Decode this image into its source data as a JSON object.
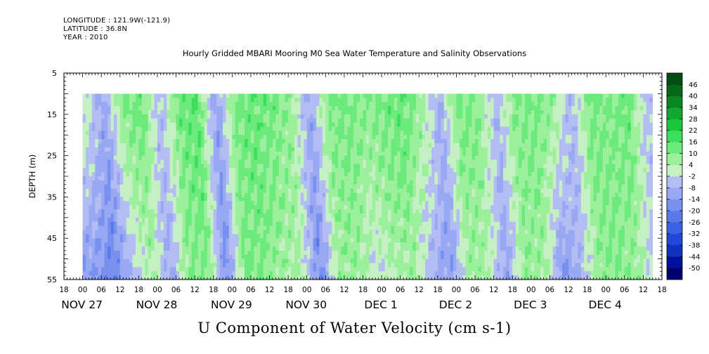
{
  "header": {
    "longitude": "LONGITUDE : 121.9W(-121.9)",
    "latitude": "LATITUDE : 36.8N",
    "year": "YEAR : 2010"
  },
  "chart_data": {
    "type": "heatmap",
    "title": "Hourly Gridded MBARI Mooring M0 Sea Water Temperature and Salinity Observations",
    "bottom_title": "U Component of Water Velocity (cm s-1)",
    "ylabel": "DEPTH (m)",
    "ylim": [
      5,
      55
    ],
    "y_inverted": true,
    "y_ticks": [
      5,
      15,
      25,
      35,
      45,
      55
    ],
    "data_depth_range": [
      10,
      55
    ],
    "x_range_hours": [
      -6,
      186
    ],
    "x_start": "NOV 27 2010 00:00",
    "x_tick_labels": [
      "18",
      "00",
      "06",
      "12",
      "18",
      "00",
      "06",
      "12",
      "18",
      "00",
      "06",
      "12",
      "18",
      "00",
      "06",
      "12",
      "18",
      "00",
      "06",
      "12",
      "18",
      "00",
      "06",
      "12",
      "18",
      "00",
      "06",
      "12",
      "18",
      "00",
      "06",
      "12",
      "18"
    ],
    "x_date_labels": [
      {
        "label": "NOV 27",
        "hour": 0
      },
      {
        "label": "NOV 28",
        "hour": 24
      },
      {
        "label": "NOV 29",
        "hour": 48
      },
      {
        "label": "NOV 30",
        "hour": 72
      },
      {
        "label": "DEC  1",
        "hour": 96
      },
      {
        "label": "DEC  2",
        "hour": 120
      },
      {
        "label": "DEC  3",
        "hour": 144
      },
      {
        "label": "DEC  4",
        "hour": 168
      }
    ],
    "colorbar": {
      "levels": [
        -50,
        -44,
        -38,
        -32,
        -26,
        -20,
        -14,
        -8,
        -2,
        4,
        10,
        16,
        22,
        28,
        34,
        40,
        46
      ],
      "labels": [
        "46",
        "40",
        "34",
        "28",
        "22",
        "16",
        "10",
        "4",
        "-2",
        "-8",
        "-14",
        "-20",
        "-26",
        "-32",
        "-38",
        "-44",
        "-50"
      ],
      "colors_low_to_high": [
        "#000070",
        "#00109a",
        "#1030c0",
        "#2048d8",
        "#3c60e4",
        "#5a78ea",
        "#7890ee",
        "#98a8f2",
        "#b4bcf4",
        "#c4f0c4",
        "#9cf09c",
        "#6cea7c",
        "#3cde5c",
        "#18c83c",
        "#10a830",
        "#088824",
        "#046818",
        "#024e12"
      ]
    },
    "u_velocity_profile_by_hour": {
      "hours": [
        0,
        6,
        12,
        18,
        24,
        30,
        36,
        42,
        48,
        54,
        60,
        66,
        72,
        78,
        84,
        90,
        96,
        102,
        108,
        114,
        120,
        126,
        132,
        138,
        144,
        150,
        156,
        162,
        168,
        174,
        180
      ],
      "values_surface": [
        4,
        -10,
        10,
        14,
        -6,
        12,
        16,
        -12,
        10,
        14,
        12,
        8,
        -10,
        10,
        12,
        10,
        12,
        14,
        8,
        -8,
        12,
        10,
        -6,
        10,
        12,
        10,
        -8,
        12,
        10,
        14,
        -4
      ],
      "values_bottom": [
        -14,
        -20,
        -6,
        4,
        -10,
        8,
        10,
        -18,
        12,
        10,
        6,
        4,
        -18,
        6,
        8,
        -2,
        4,
        6,
        -8,
        -14,
        6,
        4,
        -12,
        8,
        6,
        -16,
        -6,
        8,
        10,
        6,
        -6
      ]
    }
  }
}
